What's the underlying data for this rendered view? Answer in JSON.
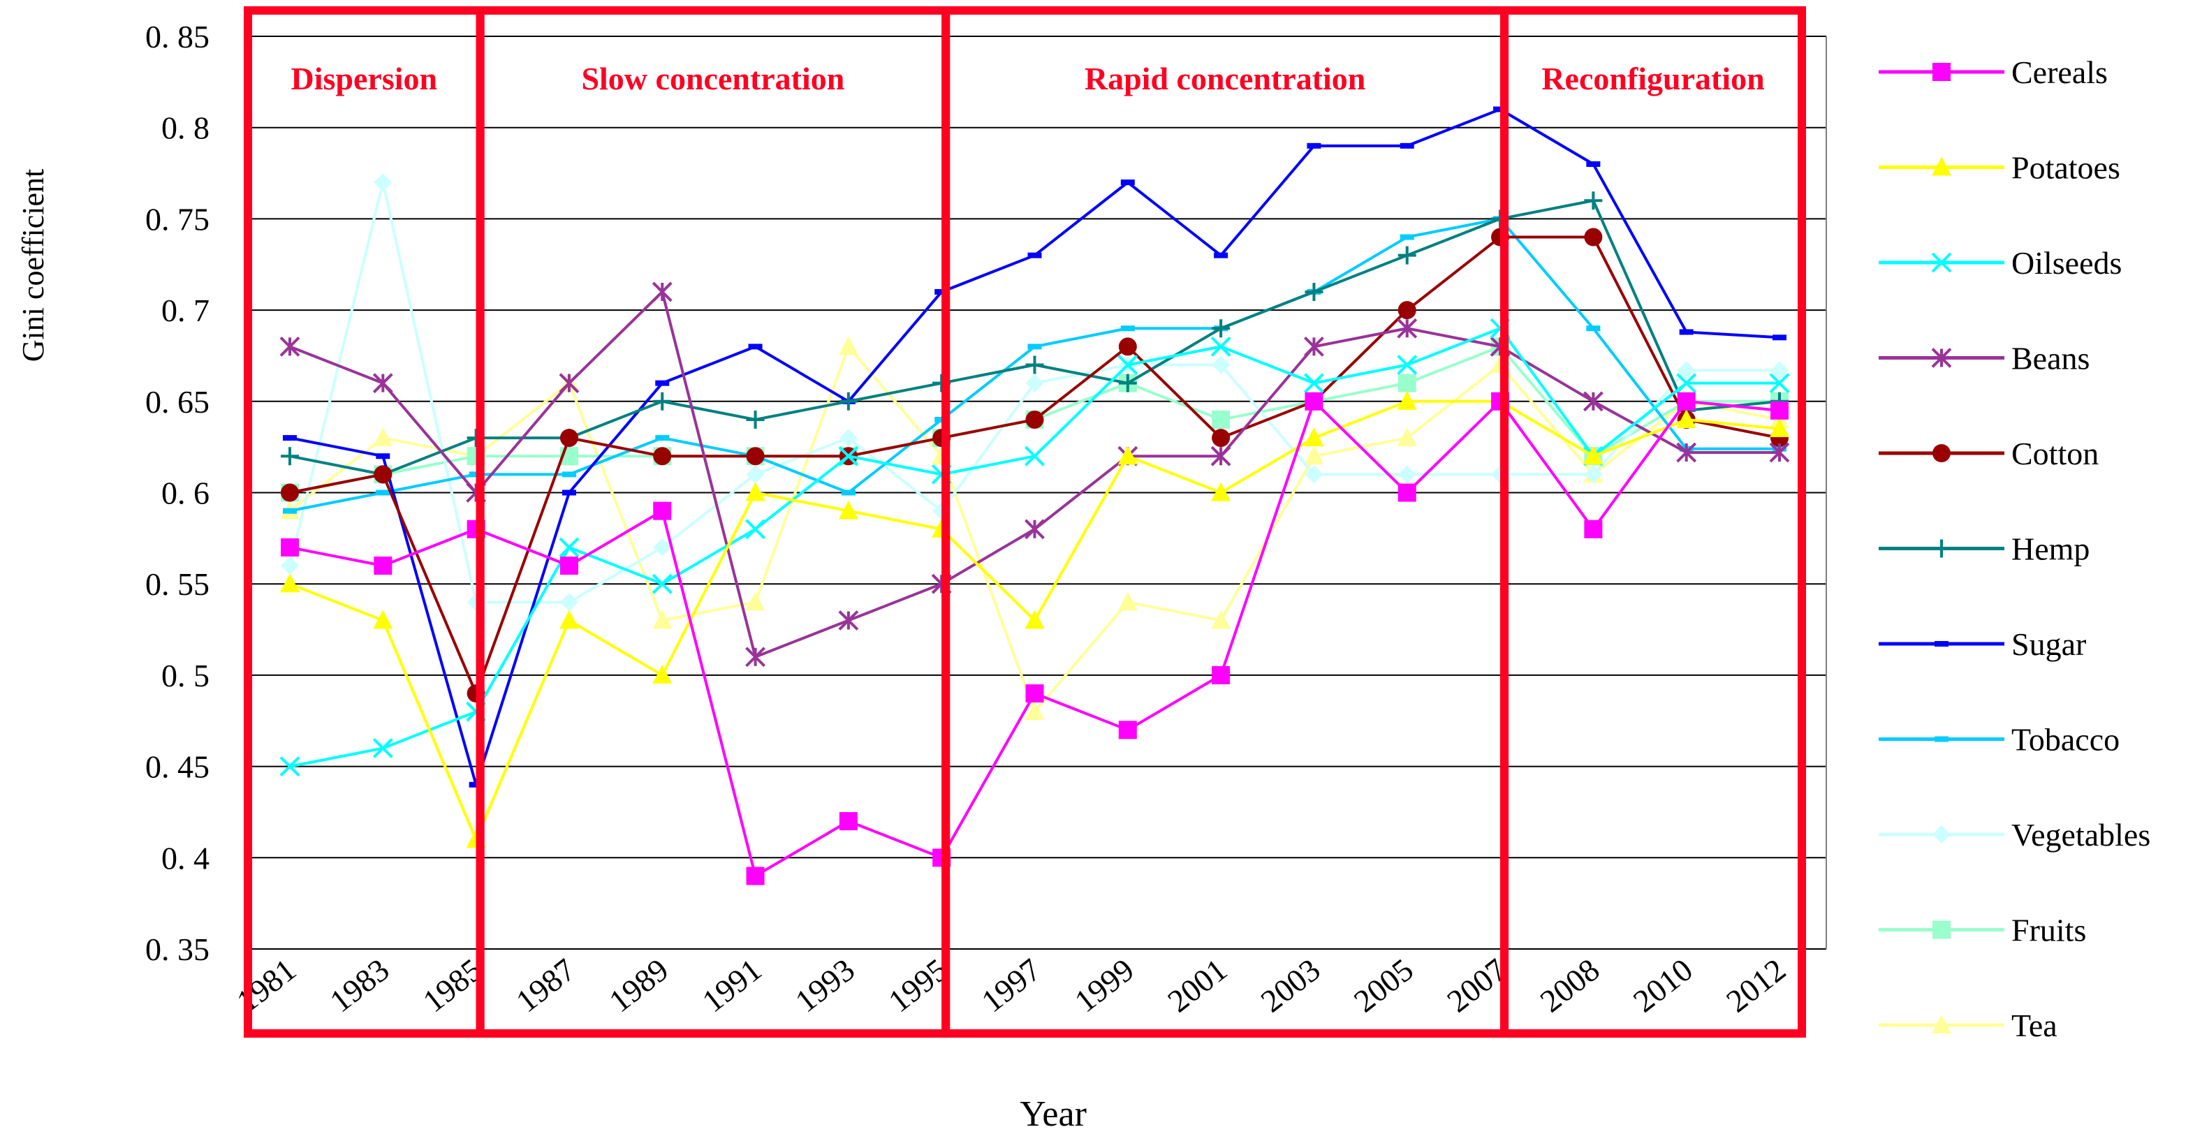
{
  "chart_data": {
    "type": "line",
    "title": "",
    "xlabel": "Year",
    "ylabel": "Gini coefficient",
    "ylim": [
      0.35,
      0.85
    ],
    "yticks": [
      0.35,
      0.4,
      0.45,
      0.5,
      0.55,
      0.6,
      0.65,
      0.7,
      0.75,
      0.8,
      0.85
    ],
    "ytick_labels": [
      "0. 35",
      "0. 4",
      "0. 45",
      "0. 5",
      "0. 55",
      "0. 6",
      "0. 65",
      "0. 7",
      "0. 75",
      "0. 8",
      "0. 85"
    ],
    "grid": true,
    "legend_position": "right",
    "categories": [
      "1981",
      "1983",
      "1985",
      "1987",
      "1989",
      "1991",
      "1993",
      "1995",
      "1997",
      "1999",
      "2001",
      "2003",
      "2005",
      "2007",
      "2008",
      "2010",
      "2012"
    ],
    "phases": [
      {
        "label": "Dispersion",
        "start": "1981",
        "end": "1985"
      },
      {
        "label": "Slow concentration",
        "start": "1985",
        "end": "1995"
      },
      {
        "label": "Rapid concentration",
        "start": "1995",
        "end": "2007"
      },
      {
        "label": "Reconfiguration",
        "start": "2007",
        "end": "2012"
      }
    ],
    "series": [
      {
        "name": "Cereals",
        "color": "#ff00ff",
        "marker": "square",
        "values": [
          0.57,
          0.56,
          0.58,
          0.56,
          0.59,
          0.39,
          0.42,
          0.4,
          0.49,
          0.47,
          0.5,
          0.65,
          0.6,
          0.65,
          0.58,
          0.65,
          0.645
        ]
      },
      {
        "name": "Potatoes",
        "color": "#ffff00",
        "marker": "triangle",
        "values": [
          0.55,
          0.53,
          0.41,
          0.53,
          0.5,
          0.6,
          0.59,
          0.58,
          0.53,
          0.62,
          0.6,
          0.63,
          0.65,
          0.65,
          0.62,
          0.64,
          0.635
        ]
      },
      {
        "name": "Oilseeds",
        "color": "#00ffff",
        "marker": "x",
        "values": [
          0.45,
          0.46,
          0.48,
          0.57,
          0.55,
          0.58,
          0.62,
          0.61,
          0.62,
          0.67,
          0.68,
          0.66,
          0.67,
          0.69,
          0.62,
          0.66,
          0.66
        ]
      },
      {
        "name": "Beans",
        "color": "#993399",
        "marker": "star",
        "values": [
          0.68,
          0.66,
          0.6,
          0.66,
          0.71,
          0.51,
          0.53,
          0.55,
          0.58,
          0.62,
          0.62,
          0.68,
          0.69,
          0.68,
          0.65,
          0.622,
          0.622
        ]
      },
      {
        "name": "Cotton",
        "color": "#990000",
        "marker": "circle",
        "values": [
          0.6,
          0.61,
          0.49,
          0.63,
          0.62,
          0.62,
          0.62,
          0.63,
          0.64,
          0.68,
          0.63,
          0.65,
          0.7,
          0.74,
          0.74,
          0.64,
          0.63
        ]
      },
      {
        "name": "Hemp",
        "color": "#008080",
        "marker": "plus",
        "values": [
          0.62,
          0.61,
          0.63,
          0.63,
          0.65,
          0.64,
          0.65,
          0.66,
          0.67,
          0.66,
          0.69,
          0.71,
          0.73,
          0.75,
          0.76,
          0.645,
          0.65
        ]
      },
      {
        "name": "Sugar",
        "color": "#0000ff",
        "marker": "dash",
        "values": [
          0.63,
          0.62,
          0.44,
          0.6,
          0.66,
          0.68,
          0.65,
          0.71,
          0.73,
          0.77,
          0.73,
          0.79,
          0.79,
          0.81,
          0.78,
          0.688,
          0.685
        ]
      },
      {
        "name": "Tobacco",
        "color": "#00ccff",
        "marker": "dash",
        "values": [
          0.59,
          0.6,
          0.61,
          0.61,
          0.63,
          0.62,
          0.6,
          0.64,
          0.68,
          0.69,
          0.69,
          0.71,
          0.74,
          0.75,
          0.69,
          0.624,
          0.624
        ]
      },
      {
        "name": "Vegetables",
        "color": "#ccffff",
        "marker": "diamond",
        "values": [
          0.56,
          0.77,
          0.54,
          0.54,
          0.57,
          0.61,
          0.63,
          0.59,
          0.66,
          0.67,
          0.67,
          0.61,
          0.61,
          0.61,
          0.61,
          0.667,
          0.667
        ]
      },
      {
        "name": "Fruits",
        "color": "#99ffcc",
        "marker": "square",
        "values": [
          0.6,
          0.61,
          0.62,
          0.62,
          0.62,
          0.62,
          0.62,
          0.63,
          0.64,
          0.66,
          0.64,
          0.65,
          0.66,
          0.68,
          0.62,
          0.65,
          0.65
        ]
      },
      {
        "name": "Tea",
        "color": "#ffff99",
        "marker": "triangle",
        "values": [
          0.59,
          0.63,
          0.62,
          0.66,
          0.53,
          0.54,
          0.68,
          0.62,
          0.48,
          0.54,
          0.53,
          0.62,
          0.63,
          0.67,
          0.61,
          0.65,
          0.64
        ]
      }
    ]
  },
  "colors": {
    "phase_box": "#ff0022",
    "phase_text": "#ff0022",
    "grid": "#000000",
    "axis_text": "#000000"
  }
}
